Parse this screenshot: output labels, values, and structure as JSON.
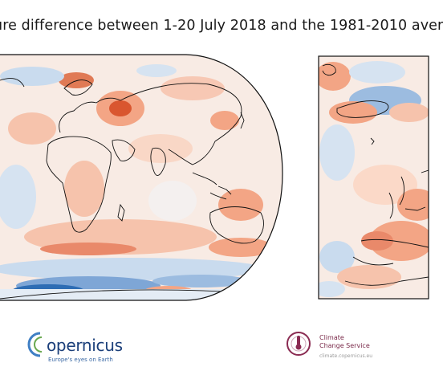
{
  "title": "ure difference between 1-20 July 2018 and the 1981-2010 aver",
  "colors": {
    "warm_strong": "#d9562f",
    "warm": "#f3a585",
    "warm_light": "#fbd9c8",
    "neutral": "#f7f2ef",
    "cool_light": "#d6e3f1",
    "cool": "#9cbce0",
    "cool_strong": "#2e6db4",
    "coast": "#111111"
  },
  "logos": {
    "copernicus": {
      "name": "opernicus",
      "initial": "C",
      "tagline": "Europe's eyes on Earth",
      "icon": "copernicus-arc-icon"
    },
    "c3s": {
      "line1": "Climate",
      "line2": "Change Service",
      "url": "climate.copernicus.eu",
      "icon": "thermometer-cloud-icon"
    }
  }
}
